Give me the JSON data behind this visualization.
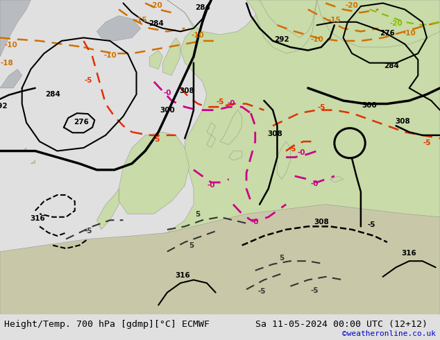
{
  "title_left": "Height/Temp. 700 hPa [gdmp][°C] ECMWF",
  "title_right": "Sa 11-05-2024 00:00 UTC (12+12)",
  "credit": "©weatheronline.co.uk",
  "fig_width": 6.34,
  "fig_height": 4.9,
  "dpi": 100,
  "title_fontsize": 9.5,
  "credit_fontsize": 8,
  "credit_color": "#0000cc",
  "bg_color": "#c8ccd8",
  "land_green": "#c8dba8",
  "land_gray": "#b8bcc0",
  "border_color": "#888888"
}
